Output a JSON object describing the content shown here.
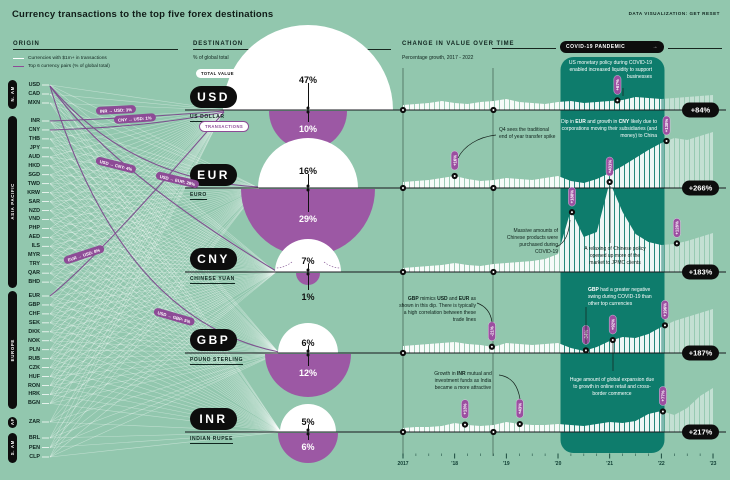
{
  "header": {
    "title": "Currency transactions to the top five forex destinations",
    "credit": "DATA VISUALIZATION: GET RESET"
  },
  "sections": {
    "origin": {
      "label": "ORIGIN",
      "legend": [
        {
          "swatch": "white-line",
          "label": "Currencies with $1m+ in transactions"
        },
        {
          "swatch": "purple-line",
          "label": "Top 6 currency pairs (% of global total)"
        }
      ]
    },
    "destination": {
      "label": "DESTINATION",
      "sublabel": "% of global total"
    },
    "change": {
      "label": "CHANGE IN VALUE OVER TIME",
      "sublabel": "Percentage growth, 2017 - 2022"
    }
  },
  "origin_groups": [
    {
      "name": "N. AM",
      "currencies": [
        "USD",
        "CAD",
        "MXN"
      ]
    },
    {
      "name": "ASIA PACIFIC",
      "currencies": [
        "INR",
        "CNY",
        "THB",
        "JPY",
        "AUD",
        "HKD",
        "SGD",
        "TWD",
        "KRW",
        "SAR",
        "NZD",
        "VND",
        "PHP",
        "AED",
        "ILS",
        "MYR",
        "TRY",
        "QAR",
        "BHD"
      ]
    },
    {
      "name": "EUROPE",
      "currencies": [
        "EUR",
        "GBP",
        "CHF",
        "SEK",
        "DKK",
        "NOK",
        "PLN",
        "RUB",
        "CZK",
        "HUF",
        "RON",
        "HRK",
        "BGN"
      ]
    },
    {
      "name": "AF",
      "currencies": [
        "ZAR"
      ]
    },
    {
      "name": "S. AM",
      "currencies": [
        "BRL",
        "PEN",
        "CLP"
      ]
    }
  ],
  "pair_flows": [
    {
      "label": "INR → USD: 3%"
    },
    {
      "label": "CNY → USD: 1%"
    },
    {
      "label": "USD → CNY: 4%"
    },
    {
      "label": "USD → EUR: 28%"
    },
    {
      "label": "EUR → USD: 8%"
    },
    {
      "label": "USD → GBP: 5%"
    }
  ],
  "badges": {
    "total_value": "TOTAL VALUE",
    "transactions": "TRANSACTIONS"
  },
  "covid": {
    "label": "COVID-19 PANDEMIC",
    "arrow": "→"
  },
  "destinations": [
    {
      "code": "USD",
      "name": "US DOLLAR",
      "total_value": "47%",
      "transactions": "10%",
      "growth": "+84%"
    },
    {
      "code": "EUR",
      "name": "EURO",
      "total_value": "16%",
      "transactions": "29%",
      "growth": "+266%"
    },
    {
      "code": "CNY",
      "name": "CHINESE YUAN",
      "total_value": "7%",
      "transactions": "1%",
      "growth": "+183%"
    },
    {
      "code": "GBP",
      "name": "POUND STERLING",
      "total_value": "6%",
      "transactions": "12%",
      "growth": "+187%"
    },
    {
      "code": "INR",
      "name": "INDIAN RUPEE",
      "total_value": "5%",
      "transactions": "6%",
      "growth": "+217%"
    }
  ],
  "annotations": [
    {
      "id": "a1",
      "text": "US monetary policy during COVID-19 enabled increased liquidity to support businesses"
    },
    {
      "id": "a2",
      "text": "Dip in EUR and growth in CNY likely due to corporations moving their subsidiaries (and money) to China"
    },
    {
      "id": "a3",
      "text": "Q4 sees the traditional end of year transfer spike"
    },
    {
      "id": "a4",
      "text": "Massive amounts of Chinese products were purchased during COVID-19"
    },
    {
      "id": "a5",
      "text": "A relaxing of Chinese policy opened up more of the market to JPMC clients"
    },
    {
      "id": "a6",
      "text": "GBP mimics USD and EUR as shown in this dip. There is typically a high correlation between these trade lines"
    },
    {
      "id": "a7",
      "text": "GBP had a greater negative swing during COVID-19 than other top currencies"
    },
    {
      "id": "a8",
      "text": "Growth in INR mutual and investment funds as India became a more attractive"
    },
    {
      "id": "a9",
      "text": "Huge amount of global expansion due to growth in online retail and cross-border commerce"
    }
  ],
  "chart_data": {
    "type": "area",
    "title": "CHANGE IN VALUE OVER TIME",
    "subtitle": "Percentage growth, 2017 - 2022",
    "x_range": [
      2017,
      2023
    ],
    "x_labels": [
      "2017",
      "'18",
      "'19",
      "'20",
      "'21",
      "'22",
      "'23"
    ],
    "covid_band": {
      "label": "COVID-19 PANDEMIC",
      "from": 2020.0,
      "to": 2022.05
    },
    "share_of_global_total": {
      "total_value_pct": {
        "USD": 47,
        "EUR": 16,
        "CNY": 7,
        "GBP": 6,
        "INR": 5
      },
      "transactions_pct": {
        "USD": 10,
        "EUR": 29,
        "CNY": 1,
        "GBP": 12,
        "INR": 6
      }
    },
    "series": [
      {
        "name": "USD",
        "growth_2017_2022": "+84%",
        "profile": [
          5,
          6,
          7,
          9,
          7,
          6,
          8,
          9,
          11,
          8,
          7,
          6,
          8,
          9,
          7,
          8,
          9,
          10,
          13,
          12,
          11,
          12,
          13,
          14,
          15
        ],
        "markers": [
          {
            "year": 2017.0
          },
          {
            "year": 2018.75
          },
          {
            "year": 2021.15,
            "label": "+67%"
          }
        ]
      },
      {
        "name": "EUR",
        "growth_2017_2022": "+266%",
        "profile": [
          6,
          7,
          8,
          10,
          12,
          9,
          7,
          8,
          10,
          9,
          8,
          10,
          12,
          7,
          5,
          9,
          15,
          22,
          30,
          38,
          45,
          50,
          48,
          52,
          56
        ],
        "markers": [
          {
            "year": 2017.0
          },
          {
            "year": 2018.75
          },
          {
            "year": 2018.0,
            "label": "+16%"
          },
          {
            "year": 2022.1,
            "label": "+138%"
          }
        ]
      },
      {
        "name": "CNY",
        "growth_2017_2022": "+183%",
        "profile": [
          4,
          5,
          6,
          7,
          9,
          7,
          6,
          8,
          9,
          10,
          11,
          13,
          18,
          62,
          35,
          40,
          90,
          60,
          38,
          30,
          27,
          28,
          31,
          35,
          39
        ],
        "markers": [
          {
            "year": 2017.0
          },
          {
            "year": 2018.75
          },
          {
            "year": 2020.27,
            "label": "+188%"
          },
          {
            "year": 2021.0,
            "label": "+431%"
          },
          {
            "year": 2022.3,
            "label": "+128%"
          }
        ]
      },
      {
        "name": "GBP",
        "growth_2017_2022": "+187%",
        "profile": [
          7,
          8,
          9,
          10,
          11,
          9,
          8,
          6,
          10,
          9,
          8,
          9,
          10,
          5,
          2,
          6,
          12,
          16,
          15,
          19,
          26,
          32,
          36,
          40,
          44
        ],
        "markers": [
          {
            "year": 2017.0
          },
          {
            "year": 2018.72,
            "label": "-21%"
          },
          {
            "year": 2020.54,
            "label": "-34%"
          },
          {
            "year": 2021.06,
            "label": "+92%"
          },
          {
            "year": 2022.07,
            "label": "+196%"
          }
        ]
      },
      {
        "name": "INR",
        "growth_2017_2022": "+217%",
        "profile": [
          4,
          5,
          5,
          6,
          9,
          7,
          6,
          7,
          10,
          8,
          7,
          7,
          8,
          7,
          6,
          8,
          10,
          9,
          11,
          18,
          21,
          17,
          24,
          36,
          44
        ],
        "markers": [
          {
            "year": 2017.0
          },
          {
            "year": 2018.75
          },
          {
            "year": 2018.2,
            "label": "+13%"
          },
          {
            "year": 2019.26,
            "label": "+43%"
          },
          {
            "year": 2022.03,
            "label": "+77%"
          }
        ]
      }
    ],
    "colors": {
      "background": "#92c7ae",
      "covid_band": "#0e7c6c",
      "area": "#ffffff",
      "purple": "#9c58a4",
      "purple_dark": "#8d4b96",
      "black": "#0d0d0d"
    }
  }
}
